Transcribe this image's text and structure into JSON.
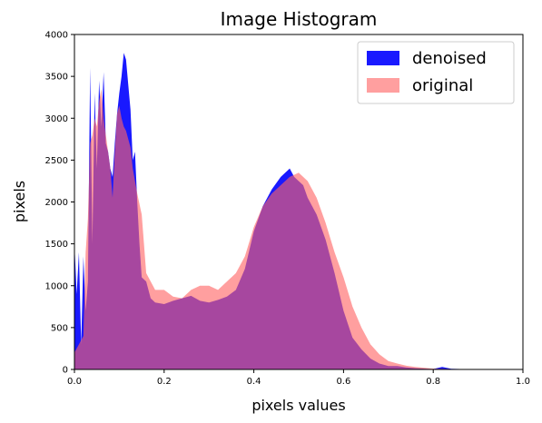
{
  "chart_data": {
    "type": "area",
    "title": "Image Histogram",
    "xlabel": "pixels values",
    "ylabel": "pixels",
    "xlim": [
      0,
      1
    ],
    "ylim": [
      0,
      4000
    ],
    "x_ticks": [
      0.0,
      0.2,
      0.4,
      0.6,
      0.8,
      1.0
    ],
    "x_tick_labels": [
      "0.0",
      "0.2",
      "0.4",
      "0.6",
      "0.8",
      "1.0"
    ],
    "y_ticks": [
      0,
      500,
      1000,
      1500,
      2000,
      2500,
      3000,
      3500,
      4000
    ],
    "y_tick_labels": [
      "0",
      "500",
      "1000",
      "1500",
      "2000",
      "2500",
      "3000",
      "3500",
      "4000"
    ],
    "grid": false,
    "legend_position": "top-right",
    "series": [
      {
        "name": "denoised",
        "color": "#0000ff",
        "x": [
          0.0,
          0.005,
          0.01,
          0.015,
          0.02,
          0.025,
          0.03,
          0.035,
          0.04,
          0.045,
          0.05,
          0.055,
          0.06,
          0.065,
          0.07,
          0.075,
          0.08,
          0.085,
          0.09,
          0.095,
          0.1,
          0.105,
          0.11,
          0.115,
          0.12,
          0.125,
          0.13,
          0.135,
          0.14,
          0.145,
          0.15,
          0.16,
          0.17,
          0.18,
          0.2,
          0.22,
          0.24,
          0.26,
          0.28,
          0.3,
          0.32,
          0.34,
          0.36,
          0.38,
          0.4,
          0.42,
          0.44,
          0.46,
          0.48,
          0.49,
          0.5,
          0.51,
          0.52,
          0.54,
          0.56,
          0.58,
          0.6,
          0.62,
          0.64,
          0.66,
          0.68,
          0.7,
          0.72,
          0.74,
          0.76,
          0.78,
          0.8,
          0.82,
          0.84,
          0.86,
          0.9,
          1.0
        ],
        "values": [
          1500,
          900,
          1400,
          300,
          1350,
          700,
          1050,
          3600,
          1500,
          3300,
          2400,
          3450,
          2900,
          3550,
          2700,
          2600,
          2400,
          2300,
          2700,
          3050,
          3300,
          3500,
          3780,
          3700,
          3400,
          3100,
          2500,
          2600,
          2000,
          1500,
          1100,
          1050,
          850,
          800,
          780,
          820,
          850,
          880,
          820,
          800,
          830,
          870,
          950,
          1200,
          1650,
          1950,
          2150,
          2300,
          2400,
          2300,
          2250,
          2200,
          2050,
          1850,
          1550,
          1150,
          700,
          380,
          240,
          130,
          70,
          40,
          40,
          25,
          15,
          10,
          5,
          30,
          8,
          5,
          0,
          0
        ]
      },
      {
        "name": "original",
        "color": "#ff6464",
        "x": [
          0.0,
          0.01,
          0.02,
          0.025,
          0.03,
          0.035,
          0.04,
          0.045,
          0.05,
          0.055,
          0.06,
          0.065,
          0.07,
          0.075,
          0.08,
          0.085,
          0.09,
          0.095,
          0.1,
          0.105,
          0.11,
          0.115,
          0.12,
          0.125,
          0.13,
          0.14,
          0.15,
          0.16,
          0.17,
          0.18,
          0.2,
          0.22,
          0.24,
          0.26,
          0.28,
          0.3,
          0.32,
          0.34,
          0.36,
          0.38,
          0.4,
          0.42,
          0.44,
          0.46,
          0.48,
          0.5,
          0.52,
          0.54,
          0.56,
          0.58,
          0.6,
          0.62,
          0.64,
          0.66,
          0.68,
          0.7,
          0.72,
          0.74,
          0.76,
          0.78,
          0.8,
          0.82,
          0.84,
          0.86,
          0.88,
          0.9,
          1.0
        ],
        "values": [
          200,
          300,
          400,
          1400,
          1800,
          2700,
          2800,
          3000,
          2900,
          3200,
          3350,
          3000,
          2800,
          2600,
          2400,
          2050,
          2600,
          3050,
          3150,
          3000,
          2900,
          2850,
          2750,
          2650,
          2400,
          2100,
          1850,
          1150,
          1050,
          950,
          950,
          870,
          850,
          950,
          1000,
          1000,
          950,
          1050,
          1150,
          1350,
          1700,
          1950,
          2100,
          2200,
          2300,
          2350,
          2250,
          2050,
          1750,
          1400,
          1100,
          750,
          500,
          300,
          180,
          100,
          70,
          45,
          30,
          20,
          10,
          8,
          5,
          3,
          1,
          0,
          0
        ]
      }
    ]
  }
}
